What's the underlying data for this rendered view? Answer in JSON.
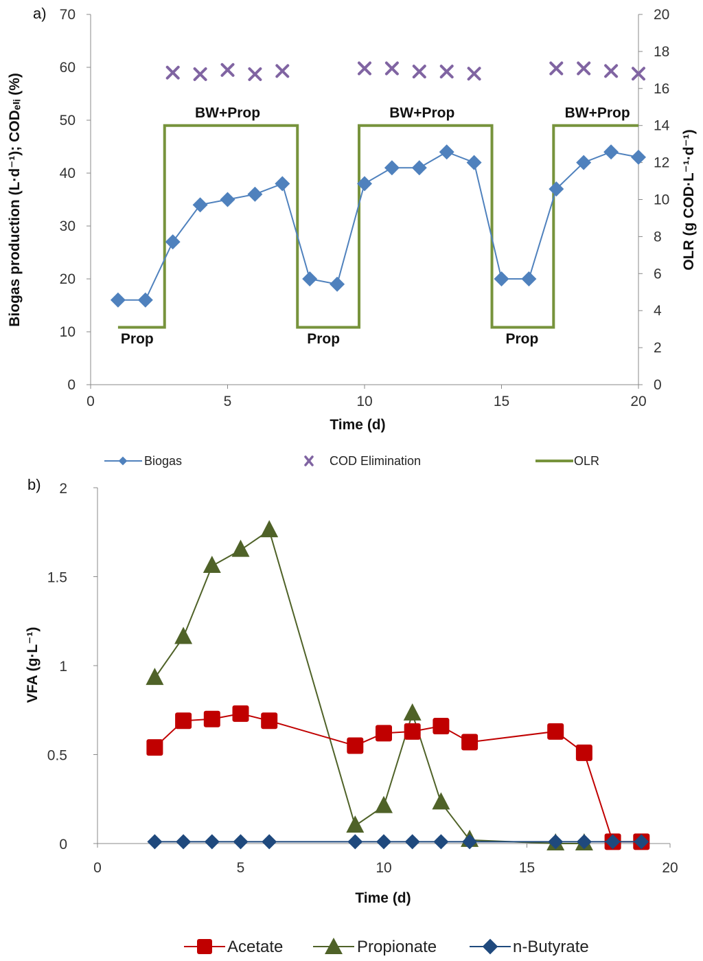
{
  "chart_data": [
    {
      "panel": "a)",
      "type": "line",
      "xlabel": "Time (d)",
      "ylabel_left": "Biogas production (L·d⁻¹); CODₑₗᵢ (%)",
      "ylabel_right": "OLR (g COD·L⁻¹·d⁻¹)",
      "xlim": [
        0,
        20
      ],
      "ylim_left": [
        0,
        70
      ],
      "ylim_right": [
        0,
        20
      ],
      "x_ticks": [
        "0",
        "5",
        "10",
        "15",
        "20"
      ],
      "y_left_ticks": [
        "0",
        "10",
        "20",
        "30",
        "40",
        "50",
        "60",
        "70"
      ],
      "y_right_ticks": [
        "0",
        "2",
        "4",
        "6",
        "8",
        "10",
        "12",
        "14",
        "16",
        "18",
        "20"
      ],
      "series": [
        {
          "name": "Biogas",
          "axis": "left",
          "color": "#4f81bd",
          "marker": "diamond",
          "x": [
            1,
            2,
            3,
            4,
            5,
            6,
            7,
            8,
            9,
            10,
            11,
            12,
            13,
            14,
            15,
            16,
            17,
            18,
            19,
            20
          ],
          "values": [
            16,
            16,
            27,
            34,
            35,
            36,
            38,
            20,
            19,
            38,
            41,
            41,
            44,
            42,
            20,
            20,
            37,
            42,
            44,
            43
          ]
        },
        {
          "name": "COD Elimination",
          "axis": "left",
          "color": "#8064a2",
          "marker": "x",
          "x": [
            3,
            4,
            5,
            6,
            7,
            10,
            11,
            12,
            13,
            14,
            17,
            18,
            19,
            20
          ],
          "values": [
            59,
            58.7,
            59.5,
            58.7,
            59.3,
            59.8,
            59.8,
            59.2,
            59.2,
            58.8,
            59.8,
            59.8,
            59.3,
            58.8
          ]
        },
        {
          "name": "OLR",
          "axis": "right",
          "color": "#77933c",
          "marker": "none",
          "step": true,
          "x": [
            1,
            2.7,
            2.7,
            7.55,
            7.55,
            9.8,
            9.8,
            14.65,
            14.65,
            16.9,
            16.9,
            20
          ],
          "values": [
            3.1,
            3.1,
            14,
            14,
            3.1,
            3.1,
            14,
            14,
            3.1,
            3.1,
            14,
            14
          ]
        }
      ],
      "annotations": [
        {
          "text": "BW+Prop",
          "x": 5,
          "y": 50.5
        },
        {
          "text": "BW+Prop",
          "x": 12.1,
          "y": 50.5
        },
        {
          "text": "BW+Prop",
          "x": 18.5,
          "y": 50.5
        },
        {
          "text": "Prop",
          "x": 1.7,
          "y": 7.8
        },
        {
          "text": "Prop",
          "x": 8.5,
          "y": 7.8
        },
        {
          "text": "Prop",
          "x": 15.75,
          "y": 7.8
        }
      ],
      "legend": [
        "Biogas",
        "COD Elimination",
        "OLR"
      ],
      "legend_position": "bottom"
    },
    {
      "panel": "b)",
      "type": "line",
      "xlabel": "Time (d)",
      "ylabel": "VFA (g·L⁻¹)",
      "xlim": [
        0,
        20
      ],
      "ylim": [
        0,
        2
      ],
      "x_ticks": [
        "0",
        "5",
        "10",
        "15",
        "20"
      ],
      "y_ticks": [
        "0",
        "0.5",
        "1",
        "1.5",
        "2"
      ],
      "series": [
        {
          "name": "Acetate",
          "color": "#c00000",
          "marker": "square",
          "x": [
            2,
            3,
            4,
            5,
            6,
            9,
            10,
            11,
            12,
            13,
            16,
            17,
            18,
            19
          ],
          "values": [
            0.54,
            0.69,
            0.7,
            0.73,
            0.69,
            0.55,
            0.62,
            0.63,
            0.66,
            0.57,
            0.63,
            0.51,
            0.01,
            0.01
          ]
        },
        {
          "name": "Propionate",
          "color": "#4f6228",
          "marker": "triangle",
          "x": [
            2,
            3,
            4,
            5,
            6,
            9,
            10,
            11,
            12,
            13,
            16,
            17
          ],
          "values": [
            0.93,
            1.16,
            1.56,
            1.65,
            1.76,
            0.1,
            0.21,
            0.73,
            0.23,
            0.02,
            0.0,
            0.0
          ]
        },
        {
          "name": "n-Butyrate",
          "color": "#1f497d",
          "marker": "diamond",
          "x": [
            2,
            3,
            4,
            5,
            6,
            9,
            10,
            11,
            12,
            13,
            16,
            17,
            18,
            19
          ],
          "values": [
            0.01,
            0.01,
            0.01,
            0.01,
            0.01,
            0.01,
            0.01,
            0.01,
            0.01,
            0.01,
            0.01,
            0.01,
            0.01,
            0.01
          ]
        }
      ],
      "legend": [
        "Acetate",
        "Propionate",
        "n-Butyrate"
      ],
      "legend_position": "bottom"
    }
  ]
}
